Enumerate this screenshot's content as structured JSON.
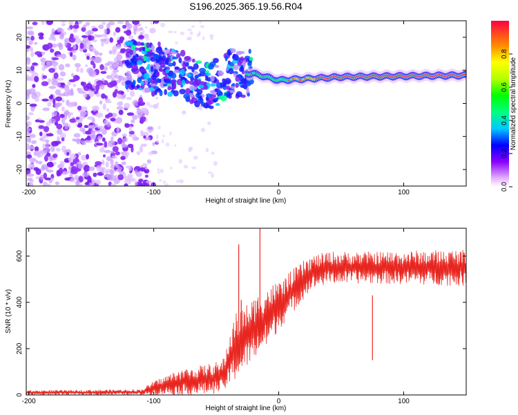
{
  "title": "S196.2025.365.19.56.R04",
  "chart_data": [
    {
      "type": "heatmap",
      "xlabel": "Height of straight line (km)",
      "ylabel": "Frequency (Hz)",
      "xlim": [
        -202,
        150
      ],
      "ylim": [
        -25,
        25
      ],
      "xticks": [
        -200,
        -100,
        0,
        100
      ],
      "yticks": [
        -20,
        -10,
        0,
        10,
        20
      ],
      "colorbar": {
        "label": "Normalized spectral amplitude",
        "range": [
          0,
          1
        ],
        "ticks": [
          0.0,
          0.2,
          0.4,
          0.6,
          0.8
        ]
      },
      "ridge": {
        "x_start": -25,
        "x_end": 150,
        "frequency_hz": 8,
        "description_points": [
          {
            "x": -120,
            "freq": 12
          },
          {
            "x": -80,
            "freq": 9
          },
          {
            "x": -55,
            "freq": 5
          },
          {
            "x": -40,
            "freq": 9
          },
          {
            "x": -20,
            "freq": 9
          },
          {
            "x": 0,
            "freq": 7
          },
          {
            "x": 50,
            "freq": 8
          },
          {
            "x": 150,
            "freq": 8.5
          }
        ]
      }
    },
    {
      "type": "line",
      "xlabel": "Height of straight line (km)",
      "ylabel": "SNR (10 * v/v)",
      "xlim": [
        -202,
        150
      ],
      "ylim": [
        0,
        720
      ],
      "xticks": [
        -200,
        -100,
        0,
        100
      ],
      "yticks": [
        0,
        200,
        400,
        600
      ],
      "series": [
        {
          "name": "SNR",
          "color": "#e8251f",
          "envelope": [
            {
              "x": -202,
              "lo": 0,
              "hi": 20
            },
            {
              "x": -110,
              "lo": 0,
              "hi": 25
            },
            {
              "x": -100,
              "lo": 0,
              "hi": 60
            },
            {
              "x": -80,
              "lo": 0,
              "hi": 110
            },
            {
              "x": -60,
              "lo": 0,
              "hi": 130
            },
            {
              "x": -45,
              "lo": 10,
              "hi": 150
            },
            {
              "x": -35,
              "lo": 60,
              "hi": 350
            },
            {
              "x": -20,
              "lo": 150,
              "hi": 420
            },
            {
              "x": -10,
              "lo": 200,
              "hi": 470
            },
            {
              "x": 0,
              "lo": 280,
              "hi": 490
            },
            {
              "x": 15,
              "lo": 380,
              "hi": 560
            },
            {
              "x": 25,
              "lo": 450,
              "hi": 600
            },
            {
              "x": 40,
              "lo": 480,
              "hi": 620
            },
            {
              "x": 80,
              "lo": 480,
              "hi": 620
            },
            {
              "x": 150,
              "lo": 470,
              "hi": 630
            }
          ],
          "spikes": [
            {
              "x": -32,
              "y": 650
            },
            {
              "x": -15,
              "y": 720
            },
            {
              "x": -30,
              "y": 410
            },
            {
              "x": 75,
              "y": 430
            }
          ]
        }
      ]
    }
  ]
}
